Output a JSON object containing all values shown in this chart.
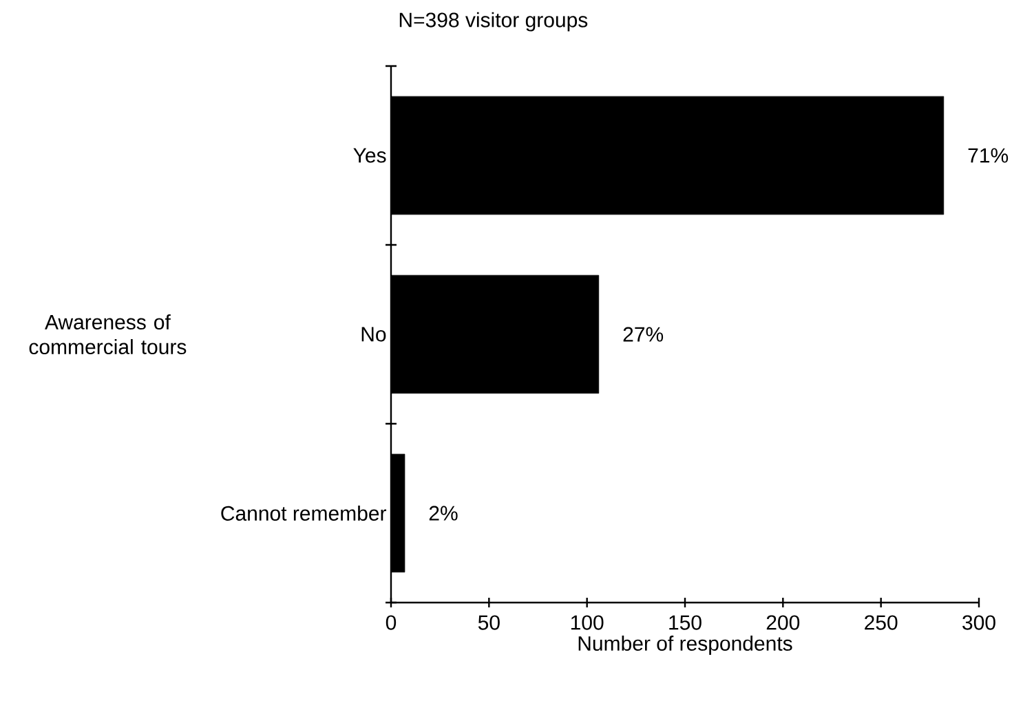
{
  "chart_data": {
    "type": "bar",
    "orientation": "horizontal",
    "title": "N=398 visitor groups",
    "xlabel": "Number of respondents",
    "ylabel": "Awareness of commercial tours",
    "categories": [
      "Yes",
      "No",
      "Cannot remember"
    ],
    "values": [
      282,
      106,
      7
    ],
    "annotations": [
      {
        "text": "71%",
        "x": 282,
        "y": "Yes"
      },
      {
        "text": "27%",
        "x": 106,
        "y": "No"
      },
      {
        "text": "2%",
        "x": 7,
        "y": "Cannot remember"
      }
    ],
    "color": "#000000",
    "xlim": [
      0,
      300
    ],
    "xticks": [
      0,
      50,
      100,
      150,
      200,
      250,
      300
    ]
  }
}
